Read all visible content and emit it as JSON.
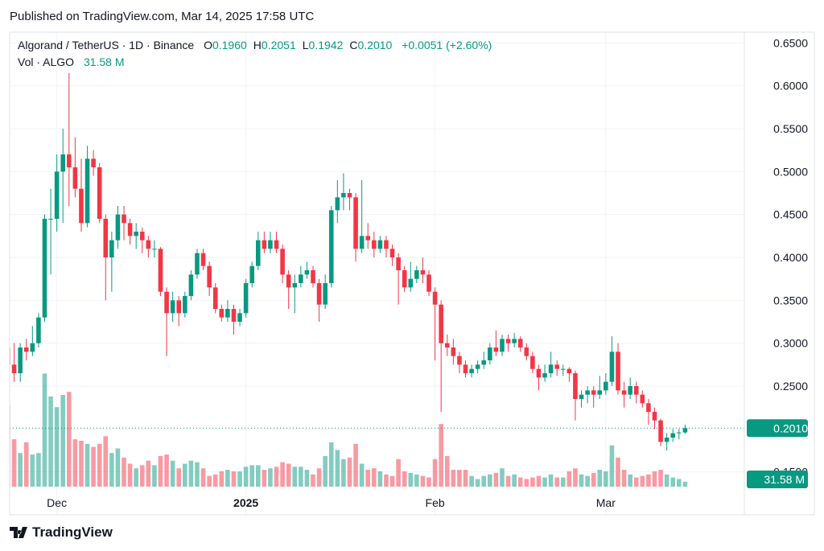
{
  "header": {
    "published": "Published on TradingView.com, Mar 14, 2025 17:58 UTC"
  },
  "footer": {
    "brand": "TradingView"
  },
  "chart_data": {
    "type": "candlestick",
    "title": "Algorand / TetherUS · 1D · Binance",
    "ohlc_legend": [
      {
        "key": "O",
        "value": "0.1960"
      },
      {
        "key": "H",
        "value": "0.2051"
      },
      {
        "key": "L",
        "value": "0.1942"
      },
      {
        "key": "C",
        "value": "0.2010"
      }
    ],
    "change": "+0.0051 (+2.60%)",
    "volume_title": "Vol · ALGO",
    "volume_label": "31.58 M",
    "last_price_label": "0.2010",
    "categories": [
      null,
      null,
      null,
      null,
      null,
      null,
      null,
      null,
      "Dec",
      null,
      null,
      null,
      null,
      null,
      null,
      null,
      null,
      null,
      null,
      null,
      null,
      null,
      null,
      null,
      null,
      null,
      null,
      null,
      null,
      null,
      null,
      null,
      null,
      null,
      null,
      null,
      null,
      null,
      null,
      "2025",
      null,
      null,
      null,
      null,
      null,
      null,
      null,
      null,
      null,
      null,
      null,
      null,
      null,
      null,
      null,
      null,
      null,
      null,
      null,
      null,
      null,
      null,
      null,
      null,
      null,
      null,
      null,
      null,
      null,
      null,
      "Feb",
      null,
      null,
      null,
      null,
      null,
      null,
      null,
      null,
      null,
      null,
      null,
      null,
      null,
      null,
      null,
      null,
      null,
      null,
      null,
      null,
      null,
      null,
      null,
      null,
      null,
      null,
      null,
      "Mar",
      null,
      null,
      null,
      null,
      null,
      null,
      null,
      null,
      null,
      null,
      null,
      null,
      null
    ],
    "open": [
      0.295,
      0.275,
      0.265,
      0.295,
      0.29,
      0.3,
      0.33,
      0.445,
      0.445,
      0.5,
      0.52,
      0.505,
      0.48,
      0.44,
      0.515,
      0.505,
      0.445,
      0.4,
      0.42,
      0.45,
      0.44,
      0.425,
      0.43,
      0.42,
      0.41,
      0.41,
      0.36,
      0.335,
      0.35,
      0.335,
      0.355,
      0.38,
      0.405,
      0.39,
      0.365,
      0.34,
      0.33,
      0.34,
      0.325,
      0.335,
      0.37,
      0.39,
      0.42,
      0.41,
      0.42,
      0.41,
      0.38,
      0.365,
      0.37,
      0.38,
      0.385,
      0.37,
      0.345,
      0.37,
      0.455,
      0.47,
      0.475,
      0.47,
      0.41,
      0.425,
      0.42,
      0.41,
      0.42,
      0.41,
      0.4,
      0.385,
      0.365,
      0.375,
      0.385,
      0.38,
      0.36,
      0.345,
      0.3,
      0.295,
      0.285,
      0.275,
      0.265,
      0.27,
      0.275,
      0.28,
      0.295,
      0.29,
      0.305,
      0.3,
      0.305,
      0.295,
      0.285,
      0.27,
      0.26,
      0.265,
      0.275,
      0.27,
      0.27,
      0.265,
      0.235,
      0.24,
      0.245,
      0.24,
      0.245,
      0.255,
      0.29,
      0.245,
      0.24,
      0.25,
      0.24,
      0.23,
      0.22,
      0.21,
      0.185,
      0.19,
      0.195,
      0.196
    ],
    "high": [
      0.33,
      0.3,
      0.3,
      0.305,
      0.32,
      0.335,
      0.45,
      0.48,
      0.52,
      0.55,
      0.615,
      0.54,
      0.515,
      0.53,
      0.525,
      0.51,
      0.45,
      0.43,
      0.46,
      0.46,
      0.445,
      0.44,
      0.435,
      0.425,
      0.42,
      0.412,
      0.365,
      0.36,
      0.355,
      0.36,
      0.385,
      0.41,
      0.41,
      0.395,
      0.37,
      0.345,
      0.35,
      0.345,
      0.34,
      0.375,
      0.395,
      0.43,
      0.43,
      0.43,
      0.43,
      0.415,
      0.385,
      0.38,
      0.39,
      0.395,
      0.39,
      0.375,
      0.38,
      0.46,
      0.49,
      0.498,
      0.48,
      0.475,
      0.49,
      0.44,
      0.43,
      0.425,
      0.425,
      0.415,
      0.405,
      0.39,
      0.395,
      0.39,
      0.4,
      0.385,
      0.365,
      0.35,
      0.31,
      0.305,
      0.29,
      0.28,
      0.275,
      0.28,
      0.29,
      0.3,
      0.315,
      0.31,
      0.31,
      0.312,
      0.308,
      0.3,
      0.29,
      0.275,
      0.275,
      0.29,
      0.28,
      0.275,
      0.272,
      0.268,
      0.245,
      0.25,
      0.25,
      0.262,
      0.265,
      0.308,
      0.3,
      0.255,
      0.26,
      0.255,
      0.245,
      0.235,
      0.225,
      0.212,
      0.195,
      0.2,
      0.2,
      0.2051
    ],
    "low": [
      0.265,
      0.255,
      0.255,
      0.28,
      0.285,
      0.295,
      0.325,
      0.38,
      0.43,
      0.44,
      0.46,
      0.47,
      0.43,
      0.435,
      0.495,
      0.44,
      0.35,
      0.36,
      0.41,
      0.42,
      0.415,
      0.41,
      0.405,
      0.4,
      0.4,
      0.355,
      0.285,
      0.325,
      0.32,
      0.33,
      0.35,
      0.375,
      0.385,
      0.355,
      0.335,
      0.325,
      0.325,
      0.31,
      0.32,
      0.33,
      0.365,
      0.385,
      0.405,
      0.405,
      0.405,
      0.37,
      0.34,
      0.335,
      0.365,
      0.375,
      0.365,
      0.325,
      0.34,
      0.365,
      0.44,
      0.455,
      0.455,
      0.395,
      0.405,
      0.41,
      0.4,
      0.405,
      0.4,
      0.39,
      0.345,
      0.36,
      0.36,
      0.37,
      0.37,
      0.355,
      0.28,
      0.22,
      0.285,
      0.275,
      0.265,
      0.26,
      0.26,
      0.265,
      0.27,
      0.275,
      0.285,
      0.285,
      0.29,
      0.295,
      0.29,
      0.28,
      0.265,
      0.245,
      0.255,
      0.26,
      0.262,
      0.262,
      0.255,
      0.21,
      0.225,
      0.23,
      0.225,
      0.235,
      0.24,
      0.25,
      0.24,
      0.225,
      0.235,
      0.23,
      0.225,
      0.205,
      0.2,
      0.18,
      0.175,
      0.185,
      0.188,
      0.1942
    ],
    "close": [
      0.275,
      0.265,
      0.295,
      0.29,
      0.3,
      0.33,
      0.445,
      0.445,
      0.5,
      0.52,
      0.505,
      0.48,
      0.44,
      0.515,
      0.505,
      0.445,
      0.4,
      0.42,
      0.45,
      0.44,
      0.425,
      0.43,
      0.42,
      0.41,
      0.41,
      0.36,
      0.335,
      0.35,
      0.335,
      0.355,
      0.38,
      0.405,
      0.39,
      0.365,
      0.34,
      0.33,
      0.34,
      0.325,
      0.335,
      0.37,
      0.39,
      0.42,
      0.41,
      0.42,
      0.41,
      0.38,
      0.365,
      0.37,
      0.38,
      0.385,
      0.37,
      0.345,
      0.37,
      0.455,
      0.47,
      0.475,
      0.47,
      0.41,
      0.425,
      0.42,
      0.41,
      0.42,
      0.41,
      0.4,
      0.385,
      0.365,
      0.375,
      0.385,
      0.38,
      0.36,
      0.345,
      0.3,
      0.295,
      0.285,
      0.275,
      0.265,
      0.27,
      0.275,
      0.28,
      0.295,
      0.29,
      0.305,
      0.3,
      0.305,
      0.295,
      0.285,
      0.27,
      0.26,
      0.265,
      0.275,
      0.27,
      0.27,
      0.265,
      0.235,
      0.24,
      0.245,
      0.24,
      0.245,
      0.255,
      0.29,
      0.245,
      0.24,
      0.25,
      0.24,
      0.23,
      0.22,
      0.21,
      0.185,
      0.19,
      0.195,
      0.196,
      0.201
    ],
    "volume": [
      530,
      310,
      220,
      290,
      210,
      220,
      740,
      590,
      520,
      600,
      620,
      310,
      300,
      280,
      260,
      280,
      330,
      220,
      250,
      190,
      150,
      120,
      140,
      170,
      140,
      200,
      210,
      170,
      120,
      150,
      170,
      160,
      120,
      70,
      80,
      100,
      110,
      100,
      100,
      130,
      140,
      140,
      110,
      120,
      130,
      160,
      150,
      130,
      130,
      110,
      80,
      120,
      200,
      290,
      240,
      180,
      190,
      280,
      150,
      110,
      120,
      100,
      80,
      70,
      180,
      100,
      90,
      80,
      70,
      60,
      180,
      410,
      200,
      110,
      110,
      110,
      70,
      50,
      70,
      80,
      90,
      120,
      70,
      80,
      60,
      50,
      60,
      70,
      60,
      80,
      60,
      60,
      100,
      120,
      80,
      70,
      90,
      110,
      100,
      270,
      190,
      110,
      80,
      60,
      70,
      80,
      100,
      110,
      80,
      60,
      50,
      31.58
    ],
    "up_color": "#089981",
    "down_color": "#f23645",
    "ylim": [
      0.1,
      0.6625
    ],
    "yticks": [
      {
        "value": 0.15,
        "label": "0.1500"
      },
      {
        "value": 0.2,
        "label": "0.2000"
      },
      {
        "value": 0.25,
        "label": "0.2500"
      },
      {
        "value": 0.3,
        "label": "0.3000"
      },
      {
        "value": 0.35,
        "label": "0.3500"
      },
      {
        "value": 0.4,
        "label": "0.4000"
      },
      {
        "value": 0.45,
        "label": "0.4500"
      },
      {
        "value": 0.5,
        "label": "0.5000"
      },
      {
        "value": 0.55,
        "label": "0.5500"
      },
      {
        "value": 0.6,
        "label": "0.6000"
      },
      {
        "value": 0.65,
        "label": "0.6500"
      }
    ],
    "volume_lim": [
      0,
      800
    ],
    "grid": true
  }
}
